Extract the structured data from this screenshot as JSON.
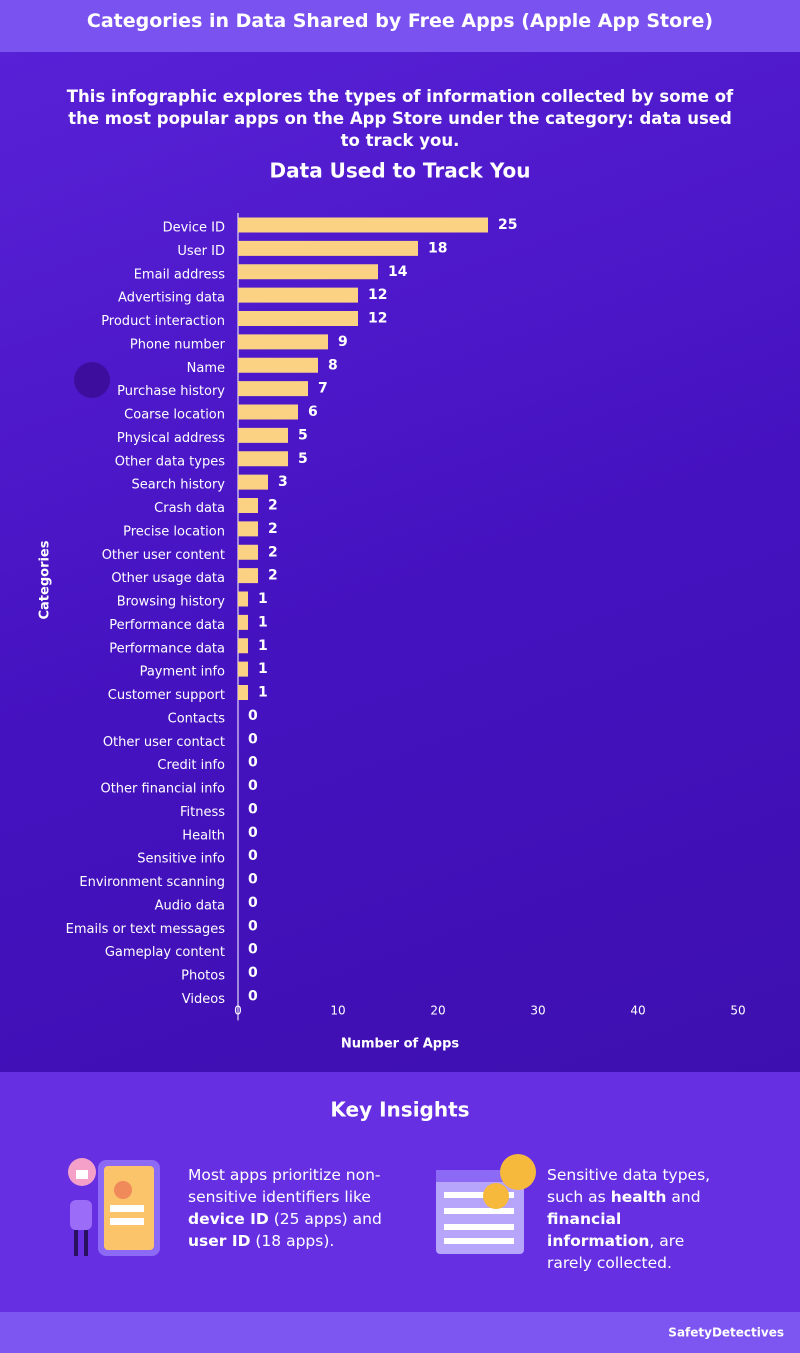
{
  "header": {
    "title": "Categories in Data Shared by Free Apps (Apple App Store)",
    "intro": "This infographic explores the types of information collected by some of the most popular apps on the App Store under the category: data used to track you."
  },
  "chart_data": {
    "type": "bar",
    "orientation": "horizontal",
    "title": "Data Used to Track You",
    "x_label": "Number of Apps",
    "y_label": "Categories",
    "color": "#fbd184",
    "categories": [
      "Device ID",
      "User ID",
      "Email address",
      "Advertising data",
      "Product interaction",
      "Phone number",
      "Name",
      "Purchase history",
      "Coarse location",
      "Physical address",
      "Other data types",
      "Search history",
      "Crash data",
      "Precise location",
      "Other user content",
      "Other usage data",
      "Browsing history",
      "Performance data",
      "Performance data",
      "Payment info",
      "Customer support",
      "Contacts",
      "Other user contact",
      "Credit info",
      "Other financial info",
      "Fitness",
      "Health",
      "Sensitive info",
      "Environment scanning",
      "Audio data",
      "Emails or text messages",
      "Gameplay content",
      "Photos",
      "Videos"
    ],
    "values": [
      25,
      18,
      14,
      12,
      12,
      9,
      8,
      7,
      6,
      5,
      5,
      3,
      2,
      2,
      2,
      2,
      1,
      1,
      1,
      1,
      1,
      0,
      0,
      0,
      0,
      0,
      0,
      0,
      0,
      0,
      0,
      0,
      0,
      0
    ],
    "xlim": [
      0,
      50
    ],
    "xticks": [
      0,
      10,
      20,
      30,
      40,
      50
    ],
    "grid": false
  },
  "insights": {
    "title": "Key Insights",
    "items": [
      {
        "segments": [
          {
            "text": "Most apps prioritize non-sensitive identifiers like "
          },
          {
            "text": "device ID",
            "bold": true
          },
          {
            "text": " (25 apps) and "
          },
          {
            "text": "user ID",
            "bold": true
          },
          {
            "text": " (18 apps)."
          }
        ]
      },
      {
        "segments": [
          {
            "text": "Sensitive data types, such as "
          },
          {
            "text": "health",
            "bold": true
          },
          {
            "text": " and "
          },
          {
            "text": "financial information",
            "bold": true
          },
          {
            "text": ", are rarely collected."
          }
        ]
      }
    ]
  },
  "footer": {
    "brand": "SafetyDetectives"
  }
}
